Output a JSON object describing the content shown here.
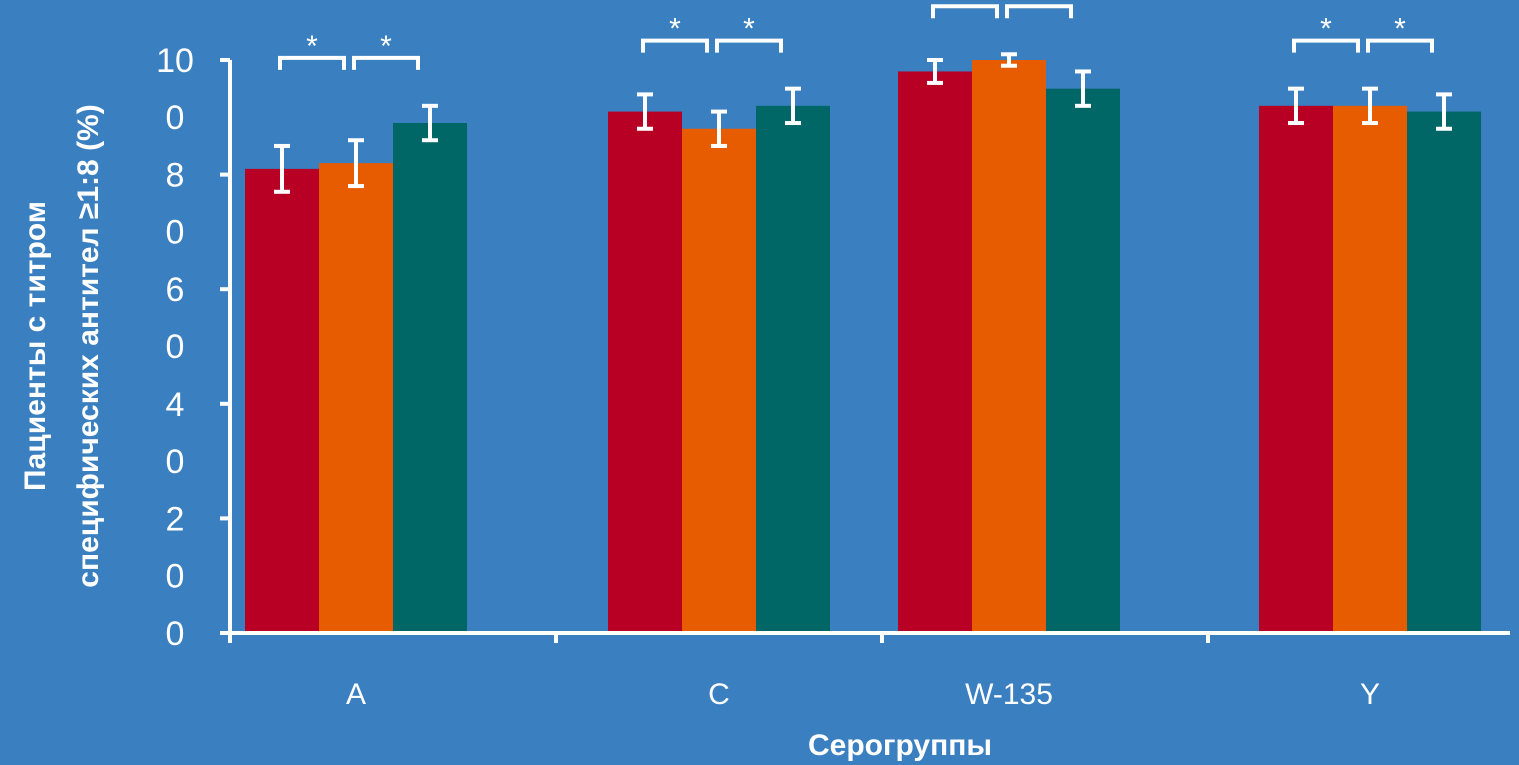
{
  "colors": {
    "background": "#3a7fc0",
    "axis": "#ffffff",
    "series": [
      "#b80025",
      "#e85c00",
      "#006666"
    ]
  },
  "chart_data": {
    "type": "bar",
    "categories": [
      "A",
      "C",
      "W-135",
      "Y"
    ],
    "series": [
      {
        "values": [
          81,
          91,
          98,
          92
        ]
      },
      {
        "values": [
          82,
          88,
          100,
          92
        ]
      },
      {
        "values": [
          89,
          92,
          95,
          91
        ]
      }
    ],
    "error_bars": [
      [
        [
          77,
          85
        ],
        [
          88,
          94
        ],
        [
          96,
          100
        ],
        [
          89,
          95
        ]
      ],
      [
        [
          78,
          86
        ],
        [
          85,
          91
        ],
        [
          99,
          101
        ],
        [
          89,
          95
        ]
      ],
      [
        [
          86,
          92
        ],
        [
          89,
          95
        ],
        [
          92,
          98
        ],
        [
          88,
          94
        ]
      ]
    ],
    "significance": [
      [
        {
          "from": 0,
          "to": 1,
          "label": "*"
        },
        {
          "from": 1,
          "to": 2,
          "label": "*"
        }
      ],
      [
        {
          "from": 0,
          "to": 1,
          "label": "*"
        },
        {
          "from": 1,
          "to": 2,
          "label": "*"
        }
      ],
      [
        {
          "from": 0,
          "to": 1,
          "label": "*"
        },
        {
          "from": 1,
          "to": 2,
          "label": "*"
        }
      ],
      [
        {
          "from": 0,
          "to": 1,
          "label": "*"
        },
        {
          "from": 1,
          "to": 2,
          "label": "*"
        }
      ]
    ],
    "ylim": [
      0,
      100
    ],
    "yticks": [
      0,
      20,
      40,
      60,
      80,
      100
    ],
    "ytick_labels": [
      [
        "0"
      ],
      [
        "2",
        "0"
      ],
      [
        "4",
        "0"
      ],
      [
        "6",
        "0"
      ],
      [
        "8",
        "0"
      ],
      [
        "10",
        "0"
      ]
    ],
    "xlabel": "Серогруппы",
    "ylabel_lines": [
      "Пациенты с титром",
      "специфических антител ≥1:8 (%)"
    ],
    "grid": false,
    "legend": "none"
  }
}
